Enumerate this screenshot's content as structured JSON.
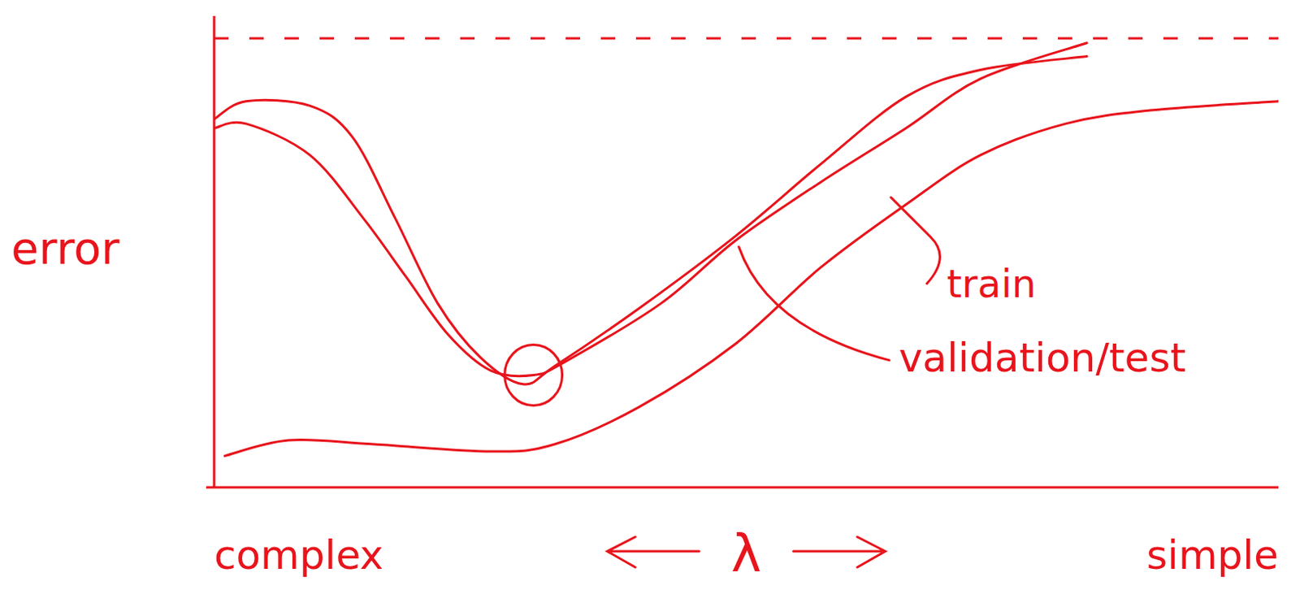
{
  "chart_data": {
    "type": "line",
    "y_label": "error",
    "x_label": "λ",
    "x_left_label": "complex",
    "x_right_label": "simple",
    "xlim": [
      0,
      100
    ],
    "ylim": [
      0,
      105
    ],
    "tick_labels": false,
    "grid": false,
    "color": "#e8141c",
    "reference_line": {
      "y": 100,
      "line_style": "dashed"
    },
    "optimum": {
      "x": 30,
      "y": 25
    },
    "series": [
      {
        "name": "train",
        "color": "#e8141c",
        "x": [
          1,
          7,
          15,
          26,
          32,
          40,
          49,
          57,
          65,
          72,
          80,
          88,
          100
        ],
        "values": [
          7,
          10.5,
          9.6,
          8,
          9.6,
          18,
          32,
          49,
          63,
          74,
          81,
          84,
          86
        ]
      },
      {
        "name": "validation/test",
        "color": "#e8141c",
        "x": [
          0,
          3,
          9,
          14,
          18,
          22,
          26,
          30,
          33,
          42,
          49,
          57,
          65,
          72,
          82
        ],
        "values": [
          80,
          81,
          74,
          60,
          47,
          34,
          26,
          25,
          28,
          41,
          55,
          68,
          80,
          91,
          99
        ]
      },
      {
        "color": "#e8141c",
        "x": [
          0,
          3,
          9,
          13,
          17,
          21,
          25,
          29,
          32,
          40,
          49,
          57,
          65,
          72,
          82
        ],
        "values": [
          82,
          86,
          85,
          78,
          60,
          41,
          29,
          23,
          27,
          40,
          56,
          72,
          87,
          93,
          96
        ]
      }
    ]
  }
}
